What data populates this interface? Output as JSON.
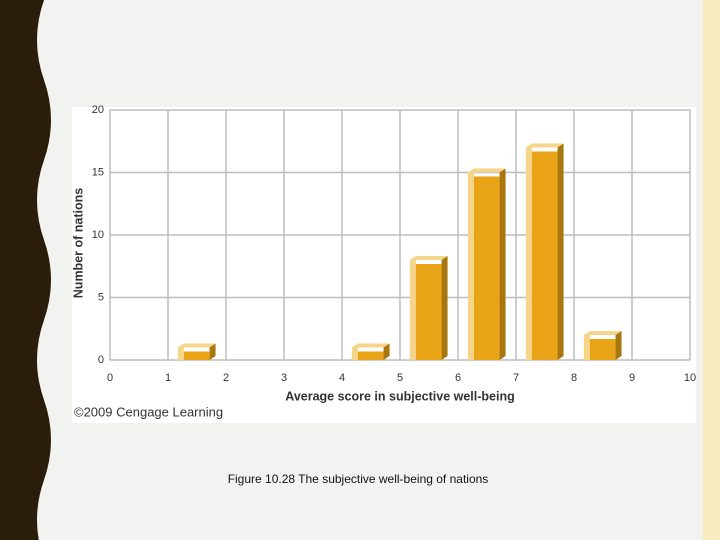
{
  "chart_data": {
    "type": "histogram",
    "xlabel": "Average score in subjective well-being",
    "ylabel": "Number of nations",
    "source": "©2009 Cengage Learning",
    "caption": "Figure 10.28  The subjective well-being of nations",
    "bins": [
      0,
      1,
      2,
      3,
      4,
      5,
      6,
      7,
      8,
      9,
      10
    ],
    "values": [
      0,
      1,
      0,
      0,
      1,
      8,
      15,
      17,
      2,
      0
    ],
    "color": "#e8a317",
    "xlim": [
      0,
      10
    ],
    "xticks": [
      0,
      1,
      2,
      3,
      4,
      5,
      6,
      7,
      8,
      9,
      10
    ],
    "ylim": [
      0,
      20
    ],
    "yticks": [
      0,
      5,
      10,
      15,
      20
    ],
    "grid": true
  }
}
